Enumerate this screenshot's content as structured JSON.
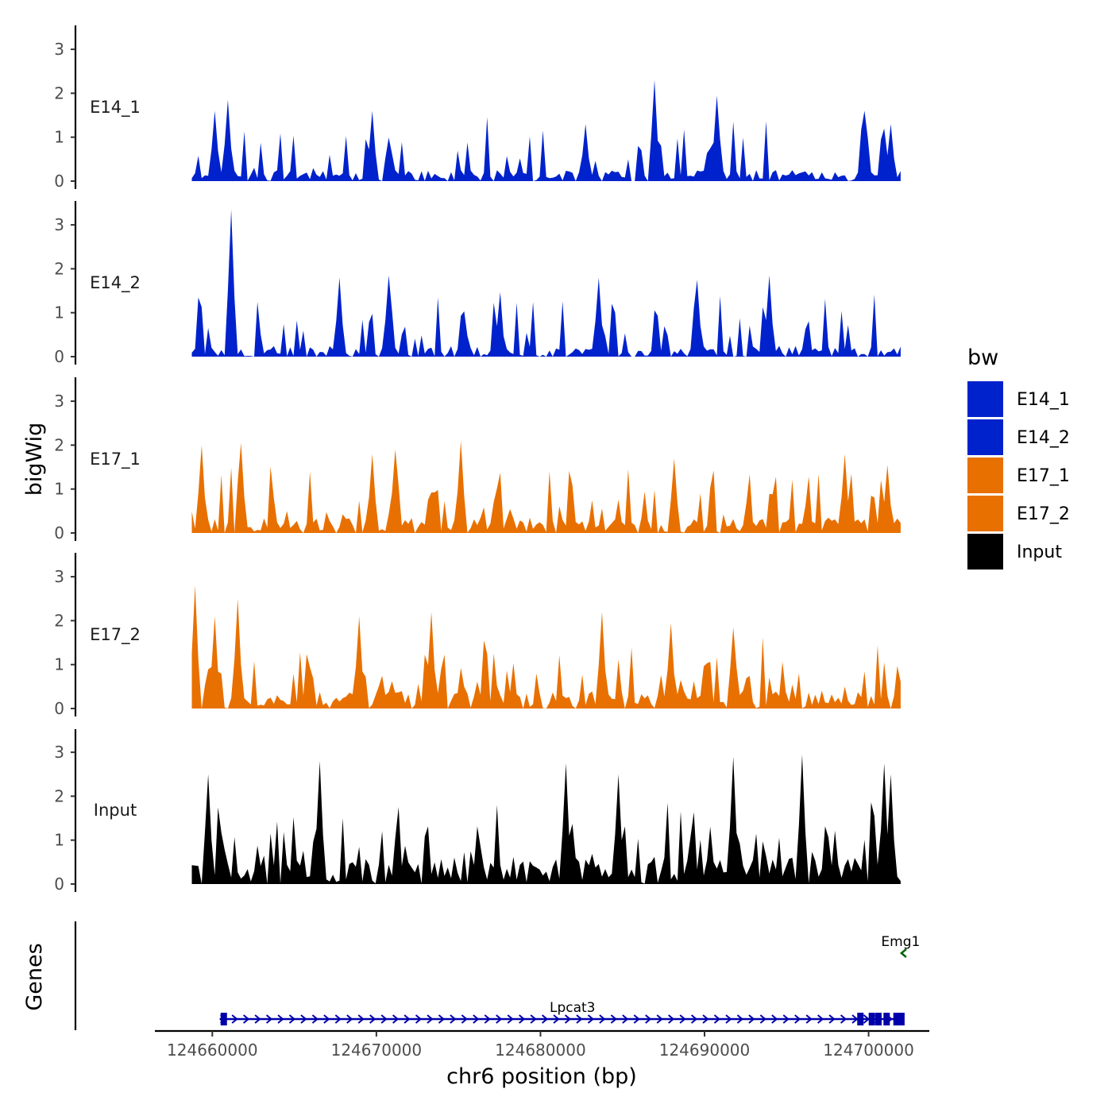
{
  "chart_data": {
    "type": "area",
    "y_axis_title": "bigWig",
    "genes_axis_title": "Genes",
    "x_axis_title": "chr6 position (bp)",
    "x_range": [
      124656500,
      124703700
    ],
    "x_ticks": [
      124660000,
      124670000,
      124680000,
      124690000,
      124700000
    ],
    "x_tick_labels": [
      "124660000",
      "124670000",
      "124680000",
      "124690000",
      "124700000"
    ],
    "y_range": [
      0,
      3.5
    ],
    "y_ticks": [
      0,
      1,
      2,
      3
    ],
    "y_tick_labels": [
      "0",
      "1",
      "2",
      "3"
    ],
    "data_start": 124658750,
    "data_end": 124702000,
    "bin_size_bp": 200,
    "legend": {
      "title": "bw",
      "entries": [
        {
          "label": "E14_1",
          "color": "#0022cc"
        },
        {
          "label": "E14_2",
          "color": "#0022cc"
        },
        {
          "label": "E17_1",
          "color": "#e87000"
        },
        {
          "label": "E17_2",
          "color": "#e87000"
        },
        {
          "label": "Input",
          "color": "#000000"
        }
      ]
    },
    "tracks": [
      {
        "name": "E14_1",
        "color": "#0022cc",
        "seed": 11,
        "base": 0.25,
        "spread": 1.1,
        "prob": 0.22,
        "gap_rate": 0.05,
        "peaks": [
          [
            124660900,
            1.85
          ],
          [
            124660100,
            1.6
          ],
          [
            124669700,
            1.6
          ],
          [
            124682800,
            1.3
          ],
          [
            124686900,
            2.3
          ],
          [
            124690800,
            1.95
          ],
          [
            124699800,
            1.6
          ],
          [
            124701300,
            1.3
          ]
        ]
      },
      {
        "name": "E14_2",
        "color": "#0022cc",
        "seed": 23,
        "base": 0.25,
        "spread": 1.05,
        "prob": 0.22,
        "gap_rate": 0.06,
        "peaks": [
          [
            124661150,
            3.35
          ],
          [
            124670800,
            1.85
          ],
          [
            124667800,
            1.8
          ],
          [
            124694000,
            1.85
          ],
          [
            124683500,
            1.8
          ],
          [
            124689600,
            1.75
          ]
        ]
      },
      {
        "name": "E17_1",
        "color": "#e87000",
        "seed": 37,
        "base": 0.35,
        "spread": 1.05,
        "prob": 0.28,
        "gap_rate": 0.04,
        "peaks": [
          [
            124659300,
            2.0
          ],
          [
            124661700,
            2.05
          ],
          [
            124669700,
            1.8
          ],
          [
            124671200,
            1.9
          ],
          [
            124675100,
            2.1
          ],
          [
            124688100,
            1.7
          ],
          [
            124698500,
            1.8
          ],
          [
            124701100,
            1.55
          ]
        ]
      },
      {
        "name": "E17_2",
        "color": "#e87000",
        "seed": 53,
        "base": 0.4,
        "spread": 1.05,
        "prob": 0.28,
        "gap_rate": 0.04,
        "peaks": [
          [
            124658850,
            2.8
          ],
          [
            124661500,
            2.5
          ],
          [
            124660100,
            2.1
          ],
          [
            124669000,
            2.1
          ],
          [
            124673400,
            2.2
          ],
          [
            124683800,
            2.2
          ],
          [
            124687900,
            1.95
          ],
          [
            124691700,
            1.85
          ]
        ]
      },
      {
        "name": "Input",
        "color": "#000000",
        "seed": 71,
        "base": 0.6,
        "spread": 1.25,
        "prob": 0.32,
        "gap_rate": 0.0,
        "peaks": [
          [
            124659800,
            2.5
          ],
          [
            124666500,
            2.8
          ],
          [
            124681600,
            2.75
          ],
          [
            124684800,
            2.5
          ],
          [
            124691700,
            2.9
          ],
          [
            124696000,
            2.95
          ],
          [
            124700900,
            2.75
          ],
          [
            124701400,
            2.5
          ]
        ]
      }
    ],
    "genes": [
      {
        "name": "Lpcat3",
        "start": 124660450,
        "end": 124702000,
        "strand": "+",
        "color": "#0000aa",
        "exons": [
          124660700,
          124699500,
          124700200,
          124700600,
          124701100,
          124701700,
          124702000
        ]
      },
      {
        "name": "Emg1",
        "start": 124702000,
        "end": 124702200,
        "strand": "-",
        "color": "#006400",
        "exons": []
      }
    ]
  }
}
